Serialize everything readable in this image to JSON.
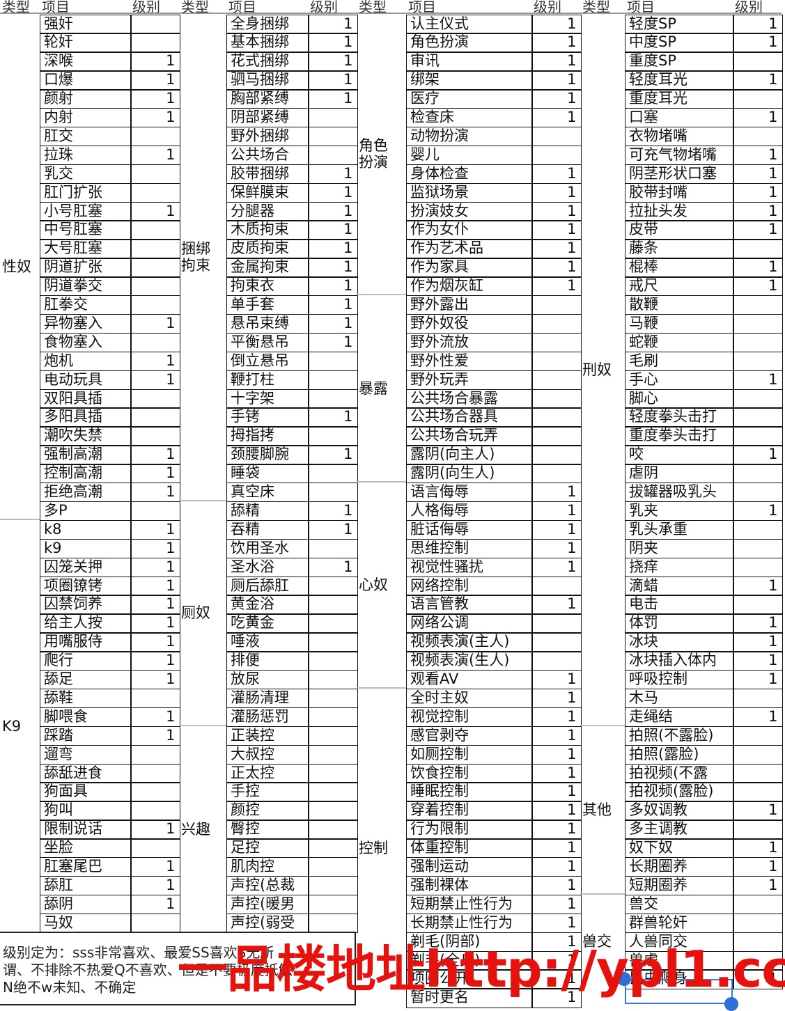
{
  "headers": {
    "type": "类型",
    "item": "项目",
    "level": "级别"
  },
  "groups": [
    {
      "types": [
        {
          "label": "性奴",
          "items": [
            {
              "name": "强奸",
              "level": ""
            },
            {
              "name": "轮奸",
              "level": ""
            },
            {
              "name": "深喉",
              "level": "1"
            },
            {
              "name": "口爆",
              "level": "1"
            },
            {
              "name": "颜射",
              "level": "1"
            },
            {
              "name": "内射",
              "level": "1"
            },
            {
              "name": "肛交",
              "level": ""
            },
            {
              "name": "拉珠",
              "level": "1"
            },
            {
              "name": "乳交",
              "level": ""
            },
            {
              "name": "肛门扩张",
              "level": ""
            },
            {
              "name": "小号肛塞",
              "level": "1"
            },
            {
              "name": "中号肛塞",
              "level": ""
            },
            {
              "name": "大号肛塞",
              "level": ""
            },
            {
              "name": "阴道扩张",
              "level": ""
            },
            {
              "name": "阴道拳交",
              "level": ""
            },
            {
              "name": "肛拳交",
              "level": ""
            },
            {
              "name": "异物塞入",
              "level": "1"
            },
            {
              "name": "食物塞入",
              "level": ""
            },
            {
              "name": "炮机",
              "level": "1"
            },
            {
              "name": "电动玩具",
              "level": "1"
            },
            {
              "name": "双阳具插",
              "level": ""
            },
            {
              "name": "多阳具插",
              "level": ""
            },
            {
              "name": "潮吹失禁",
              "level": ""
            },
            {
              "name": "强制高潮",
              "level": "1"
            },
            {
              "name": "控制高潮",
              "level": "1"
            },
            {
              "name": "拒绝高潮",
              "level": "1"
            },
            {
              "name": "多P",
              "level": ""
            }
          ]
        },
        {
          "label": "K9",
          "items": [
            {
              "name": "k8",
              "level": "1"
            },
            {
              "name": "k9",
              "level": "1"
            },
            {
              "name": "囚笼关押",
              "level": "1"
            },
            {
              "name": "项圈镣铐",
              "level": "1"
            },
            {
              "name": "囚禁饲养",
              "level": "1"
            },
            {
              "name": "给主人按",
              "level": "1"
            },
            {
              "name": "用嘴服侍",
              "level": "1"
            },
            {
              "name": "爬行",
              "level": "1"
            },
            {
              "name": "舔足",
              "level": "1"
            },
            {
              "name": "舔鞋",
              "level": ""
            },
            {
              "name": "脚喂食",
              "level": "1"
            },
            {
              "name": "踩踏",
              "level": "1"
            },
            {
              "name": "遛弯",
              "level": ""
            },
            {
              "name": "舔舐进食",
              "level": ""
            },
            {
              "name": "狗面具",
              "level": ""
            },
            {
              "name": "狗叫",
              "level": ""
            },
            {
              "name": "限制说话",
              "level": "1"
            },
            {
              "name": "坐脸",
              "level": ""
            },
            {
              "name": "肛塞尾巴",
              "level": "1"
            },
            {
              "name": "舔肛",
              "level": "1"
            },
            {
              "name": "舔阴",
              "level": "1"
            },
            {
              "name": "马奴",
              "level": ""
            }
          ]
        }
      ]
    },
    {
      "types": [
        {
          "label": "捆绑\n拘束",
          "items": [
            {
              "name": "全身捆绑",
              "level": "1"
            },
            {
              "name": "基本捆绑",
              "level": "1"
            },
            {
              "name": "花式捆绑",
              "level": "1"
            },
            {
              "name": "驷马捆绑",
              "level": "1"
            },
            {
              "name": "胸部紧缚",
              "level": "1"
            },
            {
              "name": "阴部紧缚",
              "level": ""
            },
            {
              "name": "野外捆绑",
              "level": ""
            },
            {
              "name": "公共场合",
              "level": ""
            },
            {
              "name": "胶带捆绑",
              "level": "1"
            },
            {
              "name": "保鲜膜束",
              "level": "1"
            },
            {
              "name": "分腿器",
              "level": "1"
            },
            {
              "name": "木质拘束",
              "level": "1"
            },
            {
              "name": "皮质拘束",
              "level": "1"
            },
            {
              "name": "金属拘束",
              "level": "1"
            },
            {
              "name": "拘束衣",
              "level": "1"
            },
            {
              "name": "单手套",
              "level": "1"
            },
            {
              "name": "悬吊束缚",
              "level": "1"
            },
            {
              "name": "平衡悬吊",
              "level": "1"
            },
            {
              "name": "倒立悬吊",
              "level": ""
            },
            {
              "name": "鞭打柱",
              "level": ""
            },
            {
              "name": "十字架",
              "level": ""
            },
            {
              "name": "手铐",
              "level": "1"
            },
            {
              "name": "拇指拷",
              "level": ""
            },
            {
              "name": "颈腰脚腕",
              "level": "1"
            },
            {
              "name": "睡袋",
              "level": ""
            },
            {
              "name": "真空床",
              "level": ""
            }
          ]
        },
        {
          "label": "厕奴",
          "items": [
            {
              "name": "舔精",
              "level": "1"
            },
            {
              "name": "吞精",
              "level": "1"
            },
            {
              "name": "饮用圣水",
              "level": ""
            },
            {
              "name": "圣水浴",
              "level": "1"
            },
            {
              "name": "厕后舔肛",
              "level": ""
            },
            {
              "name": "黄金浴",
              "level": ""
            },
            {
              "name": "吃黄金",
              "level": ""
            },
            {
              "name": "唾液",
              "level": ""
            },
            {
              "name": "排便",
              "level": ""
            },
            {
              "name": "放尿",
              "level": ""
            },
            {
              "name": "灌肠清理",
              "level": ""
            },
            {
              "name": "灌肠惩罚",
              "level": ""
            }
          ]
        },
        {
          "label": "兴趣",
          "items": [
            {
              "name": "正装控",
              "level": ""
            },
            {
              "name": "大叔控",
              "level": ""
            },
            {
              "name": "正太控",
              "level": ""
            },
            {
              "name": "手控",
              "level": ""
            },
            {
              "name": "颜控",
              "level": ""
            },
            {
              "name": "臀控",
              "level": ""
            },
            {
              "name": "足控",
              "level": ""
            },
            {
              "name": "肌肉控",
              "level": ""
            },
            {
              "name": "声控(总裁",
              "level": ""
            },
            {
              "name": "声控(暖男",
              "level": ""
            },
            {
              "name": "声控(弱受",
              "level": ""
            }
          ]
        }
      ]
    },
    {
      "types": [
        {
          "label": "角色\n扮演",
          "items": [
            {
              "name": "认主仪式",
              "level": "1"
            },
            {
              "name": "角色扮演",
              "level": "1"
            },
            {
              "name": "审讯",
              "level": "1"
            },
            {
              "name": "绑架",
              "level": "1"
            },
            {
              "name": "医疗",
              "level": "1"
            },
            {
              "name": "检查床",
              "level": "1"
            },
            {
              "name": "动物扮演",
              "level": ""
            },
            {
              "name": "婴儿",
              "level": ""
            },
            {
              "name": "身体检查",
              "level": "1"
            },
            {
              "name": "监狱场景",
              "level": "1"
            },
            {
              "name": "扮演妓女",
              "level": "1"
            },
            {
              "name": "作为女仆",
              "level": "1"
            },
            {
              "name": "作为艺术品",
              "level": "1"
            },
            {
              "name": "作为家具",
              "level": "1"
            },
            {
              "name": "作为烟灰缸",
              "level": "1"
            }
          ]
        },
        {
          "label": "暴露",
          "items": [
            {
              "name": "野外露出",
              "level": ""
            },
            {
              "name": "野外奴役",
              "level": ""
            },
            {
              "name": "野外流放",
              "level": ""
            },
            {
              "name": "野外性爱",
              "level": ""
            },
            {
              "name": "野外玩弄",
              "level": ""
            },
            {
              "name": "公共场合暴露",
              "level": ""
            },
            {
              "name": "公共场合器具",
              "level": ""
            },
            {
              "name": "公共场合玩弄",
              "level": ""
            },
            {
              "name": "露阴(向主人)",
              "level": ""
            },
            {
              "name": "露阴(向生人)",
              "level": ""
            }
          ]
        },
        {
          "label": "心奴",
          "items": [
            {
              "name": "语言侮辱",
              "level": "1"
            },
            {
              "name": "人格侮辱",
              "level": "1"
            },
            {
              "name": "脏话侮辱",
              "level": "1"
            },
            {
              "name": "思维控制",
              "level": "1"
            },
            {
              "name": "视觉性骚扰",
              "level": "1"
            },
            {
              "name": "网络控制",
              "level": ""
            },
            {
              "name": "语言管教",
              "level": "1"
            },
            {
              "name": "网络公调",
              "level": ""
            },
            {
              "name": "视频表演(主人)",
              "level": ""
            },
            {
              "name": "视频表演(生人)",
              "level": ""
            },
            {
              "name": "观看AV",
              "level": "1"
            }
          ]
        },
        {
          "label": "控制",
          "items": [
            {
              "name": "全时主奴",
              "level": "1"
            },
            {
              "name": "视觉控制",
              "level": "1"
            },
            {
              "name": "感官剥夺",
              "level": "1"
            },
            {
              "name": "如厕控制",
              "level": "1"
            },
            {
              "name": "饮食控制",
              "level": "1"
            },
            {
              "name": "睡眠控制",
              "level": "1"
            },
            {
              "name": "穿着控制",
              "level": "1"
            },
            {
              "name": "行为限制",
              "level": "1"
            },
            {
              "name": "体重控制",
              "level": "1"
            },
            {
              "name": "强制运动",
              "level": "1"
            },
            {
              "name": "强制裸体",
              "level": "1"
            },
            {
              "name": "短期禁止性行为",
              "level": "1"
            },
            {
              "name": "长期禁止性行为",
              "level": "1"
            },
            {
              "name": "剃毛(阴部)",
              "level": "1"
            },
            {
              "name": "剃毛(全身)",
              "level": "1"
            },
            {
              "name": "项圈公开",
              "level": "1"
            },
            {
              "name": "暂时更名",
              "level": "1"
            }
          ]
        }
      ]
    },
    {
      "types": [
        {
          "label": "刑奴",
          "items": [
            {
              "name": "轻度SP",
              "level": "1"
            },
            {
              "name": "中度SP",
              "level": "1"
            },
            {
              "name": "重度SP",
              "level": ""
            },
            {
              "name": "轻度耳光",
              "level": "1"
            },
            {
              "name": "重度耳光",
              "level": ""
            },
            {
              "name": "口塞",
              "level": "1"
            },
            {
              "name": "衣物堵嘴",
              "level": ""
            },
            {
              "name": "可充气物堵嘴",
              "level": "1"
            },
            {
              "name": "阴茎形状口塞",
              "level": "1"
            },
            {
              "name": "胶带封嘴",
              "level": "1"
            },
            {
              "name": "拉扯头发",
              "level": "1"
            },
            {
              "name": "皮带",
              "level": "1"
            },
            {
              "name": "藤条",
              "level": ""
            },
            {
              "name": "棍棒",
              "level": "1"
            },
            {
              "name": "戒尺",
              "level": "1"
            },
            {
              "name": "散鞭",
              "level": ""
            },
            {
              "name": "马鞭",
              "level": ""
            },
            {
              "name": "蛇鞭",
              "level": ""
            },
            {
              "name": "毛刷",
              "level": ""
            },
            {
              "name": "手心",
              "level": "1"
            },
            {
              "name": "脚心",
              "level": ""
            },
            {
              "name": "轻度拳头击打",
              "level": ""
            },
            {
              "name": "重度拳头击打",
              "level": ""
            },
            {
              "name": "咬",
              "level": "1"
            },
            {
              "name": "虐阴",
              "level": ""
            },
            {
              "name": "拔罐器吸乳头",
              "level": ""
            },
            {
              "name": "乳夹",
              "level": "1"
            },
            {
              "name": "乳头承重",
              "level": ""
            },
            {
              "name": "阴夹",
              "level": ""
            },
            {
              "name": "挠痒",
              "level": ""
            },
            {
              "name": "滴蜡",
              "level": "1"
            },
            {
              "name": "电击",
              "level": ""
            },
            {
              "name": "体罚",
              "level": "1"
            },
            {
              "name": "冰块",
              "level": "1"
            },
            {
              "name": "冰块插入体内",
              "level": "1"
            },
            {
              "name": "呼吸控制",
              "level": "1"
            },
            {
              "name": "木马",
              "level": ""
            },
            {
              "name": "走绳结",
              "level": "1"
            }
          ]
        },
        {
          "label": "其他",
          "items": [
            {
              "name": "拍照(不露脸)",
              "level": ""
            },
            {
              "name": "拍照(露脸)",
              "level": ""
            },
            {
              "name": "拍视频(不露",
              "level": ""
            },
            {
              "name": "拍视频(露脸)",
              "level": ""
            },
            {
              "name": "多奴调教",
              "level": "1"
            },
            {
              "name": "多主调教",
              "level": ""
            },
            {
              "name": "奴下奴",
              "level": "1"
            },
            {
              "name": "长期圈养",
              "level": "1"
            },
            {
              "name": "短期圈养",
              "level": "1"
            }
          ]
        },
        {
          "label": "兽交",
          "items": [
            {
              "name": "兽交",
              "level": ""
            },
            {
              "name": "群兽轮奸",
              "level": ""
            },
            {
              "name": "人兽同交",
              "level": ""
            },
            {
              "name": "兽虐",
              "level": ""
            },
            {
              "name": "昆虫爬身",
              "level": "1"
            }
          ]
        }
      ]
    }
  ],
  "note": {
    "line1": "级别定为：sss非常喜欢、最爱SS喜欢S无所",
    "line2": "谓、不排除不热爱Q不喜欢、但是不要极度抵触",
    "line3": "N绝不w未知、不确定"
  },
  "watermark": "一品楼地址http://ypl1.cc/",
  "colors": {
    "watermark": "#e5120d",
    "selection": "#2f6fd6"
  }
}
